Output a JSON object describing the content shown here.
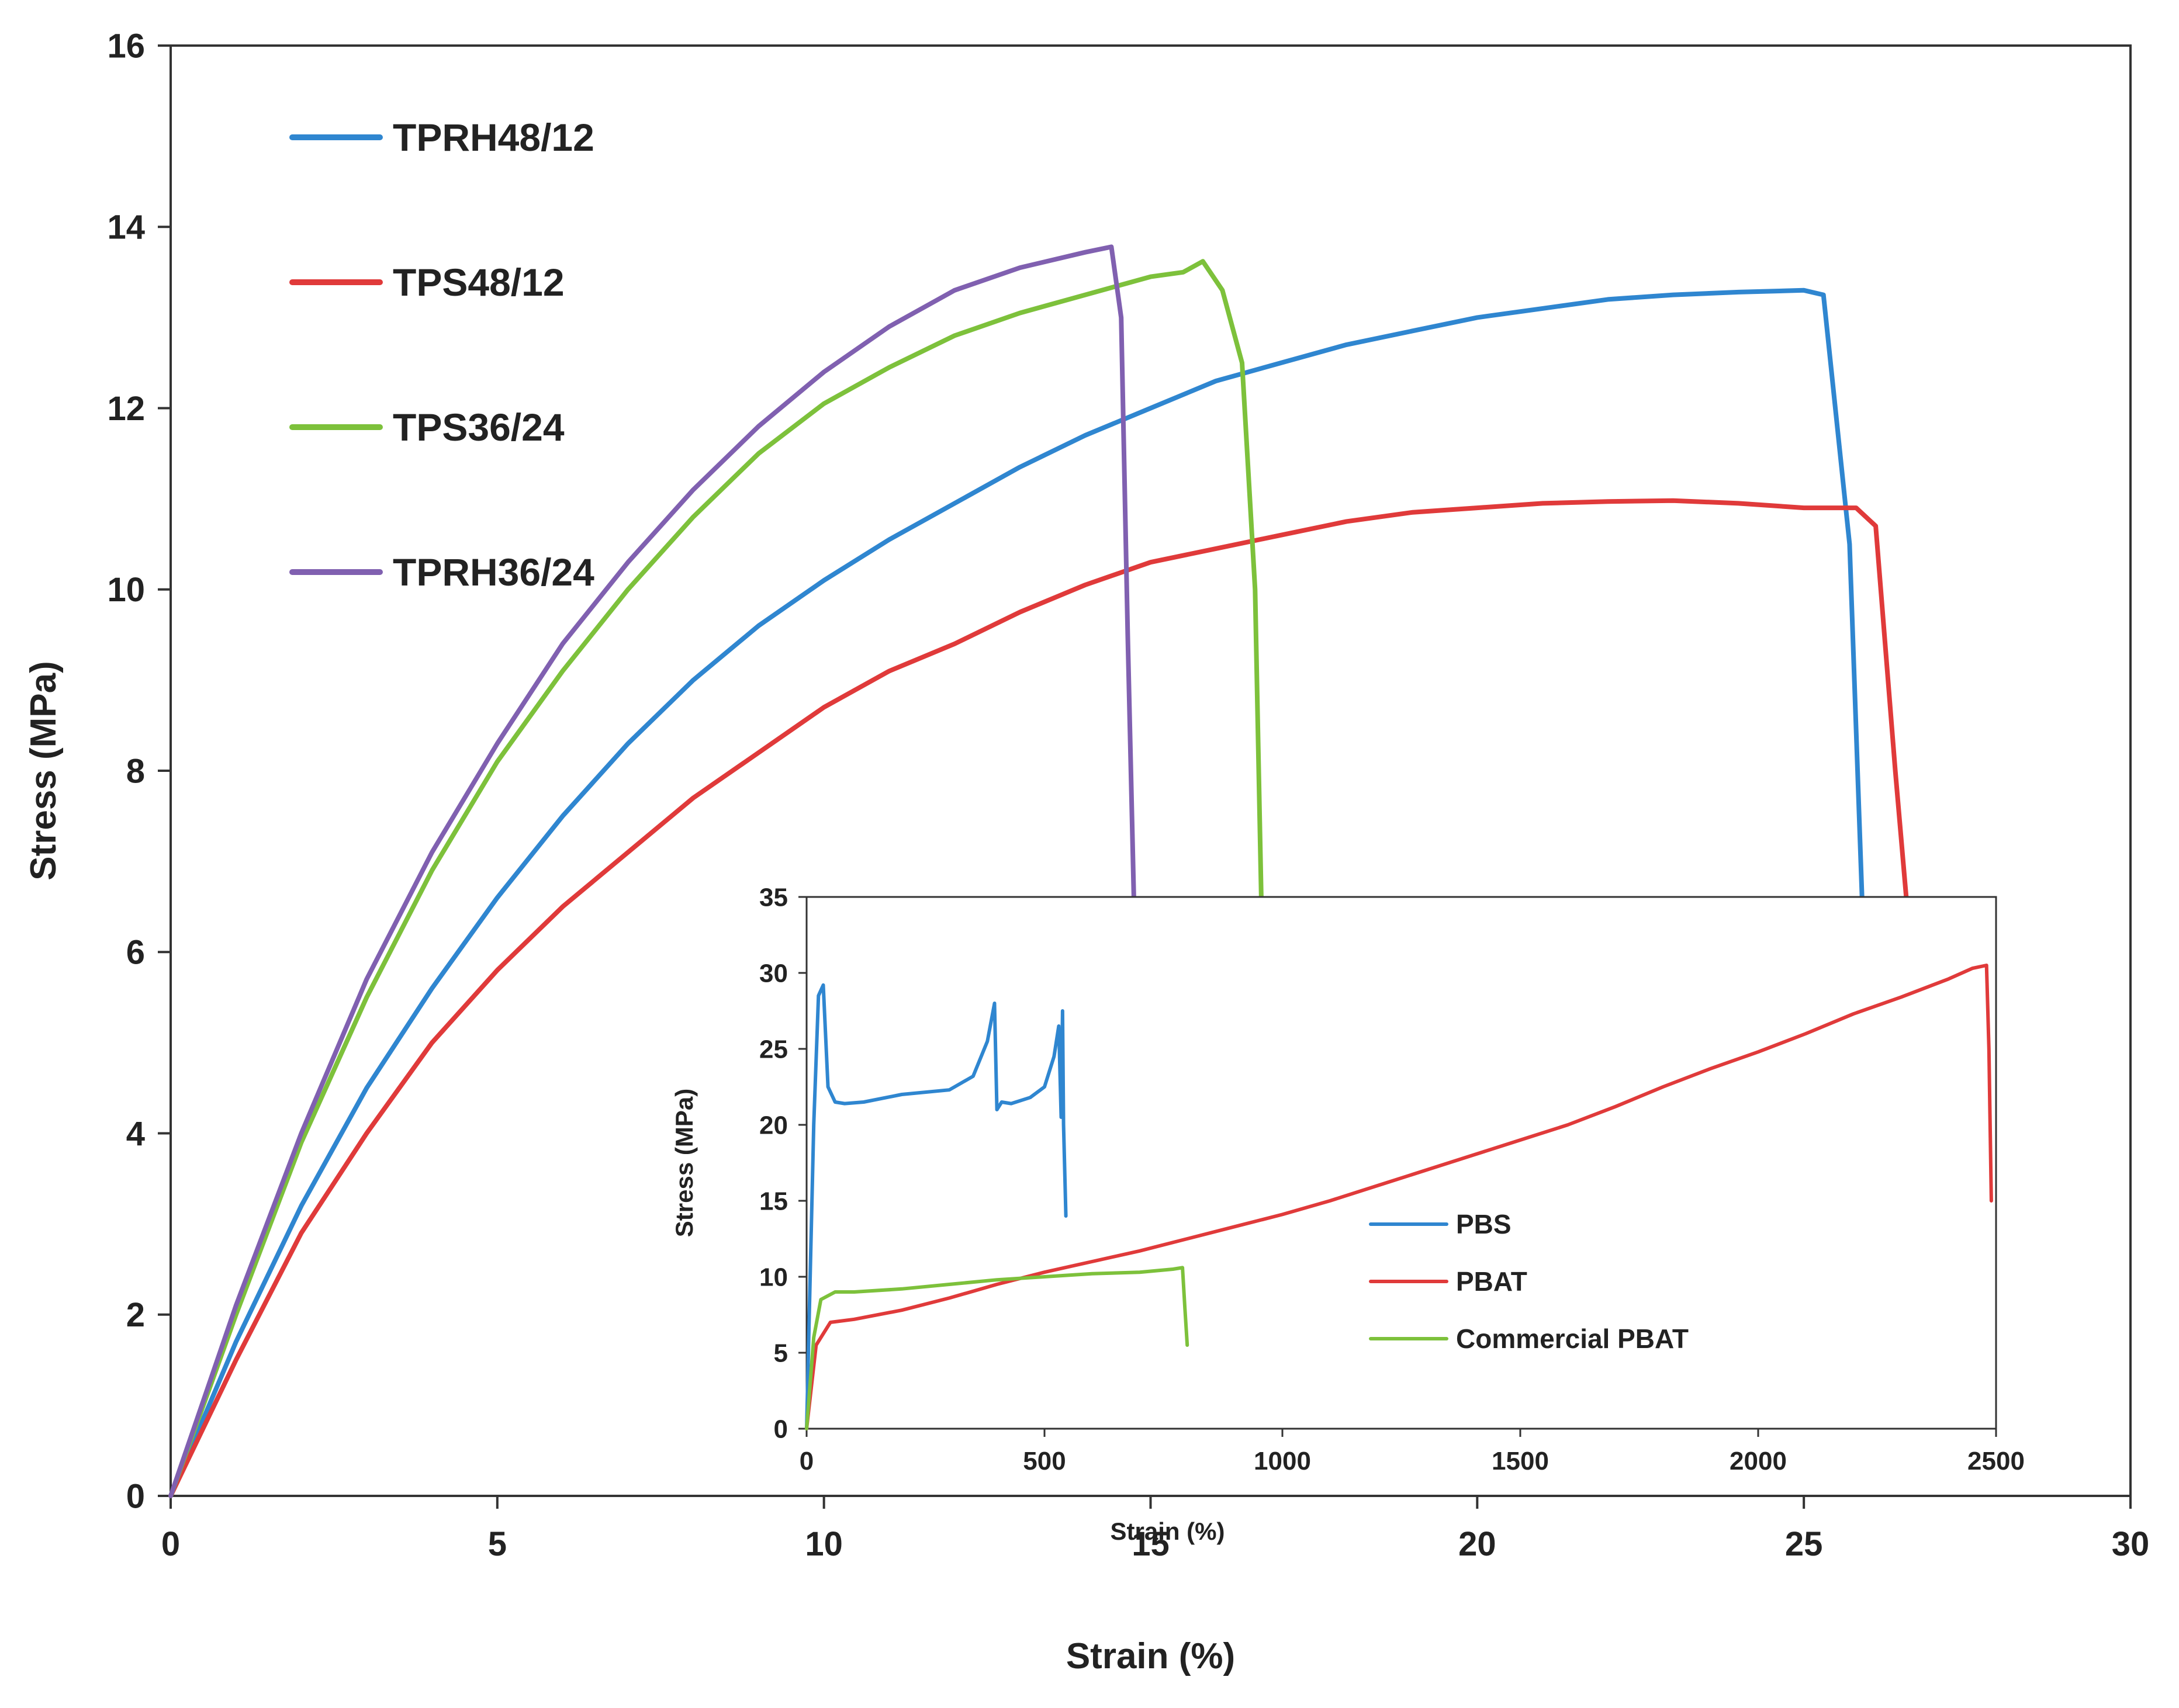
{
  "chart_data": [
    {
      "type": "line",
      "title": "",
      "xlabel": "Strain (%)",
      "ylabel": "Stress (MPa)",
      "xlim": [
        0,
        30
      ],
      "ylim": [
        0,
        16
      ],
      "xticks": [
        "0",
        "5",
        "10",
        "15",
        "20",
        "25",
        "30"
      ],
      "yticks": [
        "0",
        "2",
        "4",
        "6",
        "8",
        "10",
        "12",
        "14",
        "16"
      ],
      "grid": false,
      "legend_position": "top-left",
      "series": [
        {
          "name": "TPRH48/12",
          "color": "#2f86d0",
          "x": [
            0,
            1,
            2,
            3,
            4,
            5,
            6,
            7,
            8,
            9,
            10,
            11,
            12,
            13,
            14,
            15,
            16,
            17,
            18,
            19,
            20,
            21,
            22,
            23,
            24,
            25,
            25.3,
            25.7,
            25.9
          ],
          "y": [
            0,
            1.7,
            3.2,
            4.5,
            5.6,
            6.6,
            7.5,
            8.3,
            9.0,
            9.6,
            10.1,
            10.55,
            10.95,
            11.35,
            11.7,
            12.0,
            12.3,
            12.5,
            12.7,
            12.85,
            13.0,
            13.1,
            13.2,
            13.25,
            13.28,
            13.3,
            13.25,
            10.5,
            6.4
          ]
        },
        {
          "name": "TPS48/12",
          "color": "#e03a3a",
          "x": [
            0,
            1,
            2,
            3,
            4,
            5,
            6,
            7,
            8,
            9,
            10,
            11,
            12,
            13,
            14,
            15,
            16,
            17,
            18,
            19,
            20,
            21,
            22,
            23,
            24,
            25,
            25.8,
            26.1,
            26.4,
            26.7
          ],
          "y": [
            0,
            1.5,
            2.9,
            4.0,
            5.0,
            5.8,
            6.5,
            7.1,
            7.7,
            8.2,
            8.7,
            9.1,
            9.4,
            9.75,
            10.05,
            10.3,
            10.45,
            10.6,
            10.75,
            10.85,
            10.9,
            10.95,
            10.97,
            10.98,
            10.95,
            10.9,
            10.9,
            10.7,
            8.0,
            5.5
          ]
        },
        {
          "name": "TPS36/24",
          "color": "#7dc13b",
          "x": [
            0,
            1,
            2,
            3,
            4,
            5,
            6,
            7,
            8,
            9,
            10,
            11,
            12,
            13,
            14,
            15,
            15.5,
            15.8,
            16.1,
            16.4,
            16.6,
            16.7
          ],
          "y": [
            0,
            2.0,
            3.9,
            5.5,
            6.9,
            8.1,
            9.1,
            10.0,
            10.8,
            11.5,
            12.05,
            12.45,
            12.8,
            13.05,
            13.25,
            13.45,
            13.5,
            13.62,
            13.3,
            12.5,
            10.0,
            6.4
          ]
        },
        {
          "name": "TPRH36/24",
          "color": "#8060b0",
          "x": [
            0,
            1,
            2,
            3,
            4,
            5,
            6,
            7,
            8,
            9,
            10,
            11,
            12,
            13,
            14,
            14.4,
            14.55,
            14.65,
            14.75
          ],
          "y": [
            0,
            2.1,
            4.0,
            5.7,
            7.1,
            8.3,
            9.4,
            10.3,
            11.1,
            11.8,
            12.4,
            12.9,
            13.3,
            13.55,
            13.72,
            13.78,
            13.0,
            9.5,
            6.4
          ]
        }
      ]
    },
    {
      "type": "line",
      "title": "",
      "xlabel": "Strain (%)",
      "ylabel": "Stress (MPa)",
      "xlim": [
        0,
        2500
      ],
      "ylim": [
        0,
        35
      ],
      "xticks": [
        "0",
        "500",
        "1000",
        "1500",
        "2000",
        "2500"
      ],
      "yticks": [
        "0",
        "5",
        "10",
        "15",
        "20",
        "25",
        "30",
        "35"
      ],
      "grid": false,
      "legend_position": "center",
      "series": [
        {
          "name": "PBS",
          "color": "#2f86d0",
          "x": [
            0,
            15,
            25,
            35,
            45,
            60,
            80,
            120,
            200,
            300,
            350,
            380,
            395,
            400,
            410,
            430,
            470,
            500,
            520,
            530,
            535,
            538,
            540,
            545
          ],
          "y": [
            0,
            20,
            28.5,
            29.2,
            22.5,
            21.5,
            21.4,
            21.5,
            22.0,
            22.3,
            23.2,
            25.5,
            28,
            21.0,
            21.5,
            21.4,
            21.8,
            22.5,
            24.5,
            26.5,
            20.5,
            27.5,
            20,
            14
          ]
        },
        {
          "name": "PBAT",
          "color": "#e03a3a",
          "x": [
            0,
            20,
            50,
            100,
            200,
            300,
            400,
            500,
            600,
            700,
            800,
            900,
            1000,
            1100,
            1200,
            1300,
            1400,
            1500,
            1600,
            1700,
            1800,
            1900,
            2000,
            2100,
            2200,
            2300,
            2400,
            2450,
            2480,
            2485,
            2490
          ],
          "y": [
            0,
            5.5,
            7.0,
            7.2,
            7.8,
            8.6,
            9.5,
            10.3,
            11.0,
            11.7,
            12.5,
            13.3,
            14.1,
            15.0,
            16.0,
            17.0,
            18.0,
            19.0,
            20.0,
            21.2,
            22.5,
            23.7,
            24.8,
            26.0,
            27.3,
            28.4,
            29.6,
            30.3,
            30.5,
            25.0,
            15.0
          ]
        },
        {
          "name": "Commercial PBAT",
          "color": "#7dc13b",
          "x": [
            0,
            15,
            30,
            60,
            100,
            200,
            300,
            400,
            500,
            600,
            700,
            770,
            790,
            795,
            800
          ],
          "y": [
            0,
            6,
            8.5,
            9.0,
            9.0,
            9.2,
            9.5,
            9.8,
            10.0,
            10.2,
            10.3,
            10.5,
            10.6,
            8.0,
            5.5
          ]
        }
      ]
    }
  ]
}
